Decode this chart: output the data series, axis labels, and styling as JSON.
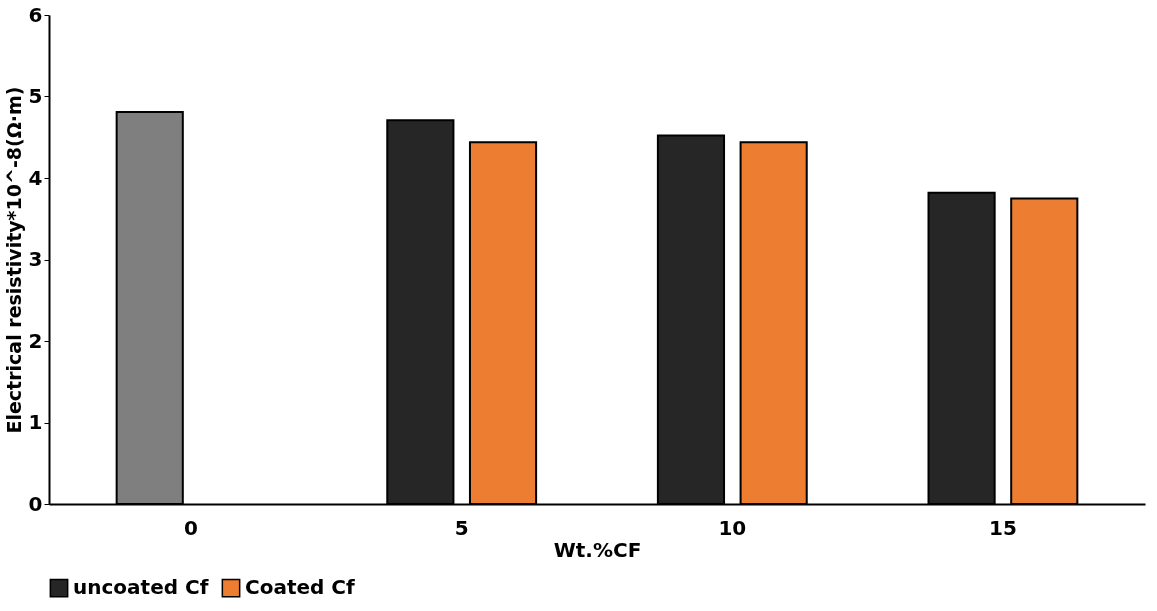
{
  "chart_data": {
    "type": "bar",
    "xlabel": "Wt.%CF",
    "ylabel": "Electrical resistivity*10^-8(Ω·m)",
    "categories": [
      "0",
      "5",
      "10",
      "15"
    ],
    "series": [
      {
        "name": "uncoated Cf",
        "color": "#262626",
        "colors": [
          "#7f7f7f",
          "#262626",
          "#262626",
          "#262626"
        ],
        "values": [
          4.81,
          4.71,
          4.52,
          3.82
        ]
      },
      {
        "name": "Coated Cf",
        "color": "#ed7d31",
        "values": [
          null,
          4.44,
          4.44,
          3.75
        ]
      }
    ],
    "ylim": [
      0,
      6
    ],
    "yticks": [
      0,
      1,
      2,
      3,
      4,
      5,
      6
    ],
    "grid": false,
    "legend": "bottom"
  }
}
